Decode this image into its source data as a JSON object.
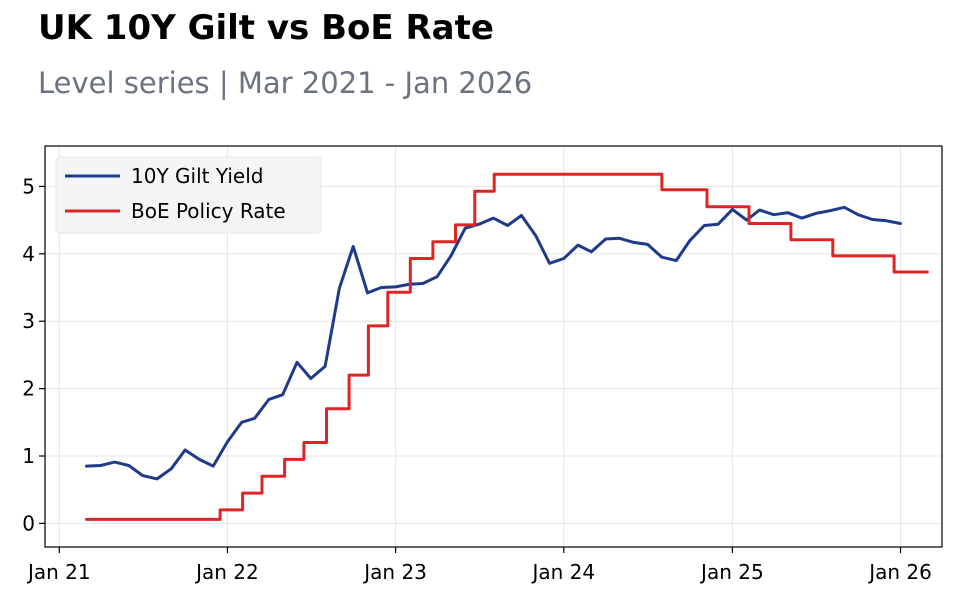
{
  "title": "UK 10Y Gilt vs BoE Rate",
  "subtitle": "Level series | Mar 2021 - Jan 2026",
  "chart_data": {
    "type": "line",
    "title": "UK 10Y Gilt vs BoE Rate",
    "subtitle": "Level series | Mar 2021 - Jan 2026",
    "xlabel": "",
    "ylabel": "",
    "x_ticks": [
      "Jan 21",
      "Jan 22",
      "Jan 23",
      "Jan 24",
      "Jan 25",
      "Jan 26"
    ],
    "y_ticks": [
      "0",
      "1",
      "2",
      "3",
      "4",
      "5"
    ],
    "xlim": [
      "2020-12-01",
      "2026-04-01"
    ],
    "ylim": [
      -0.35,
      5.6
    ],
    "grid": true,
    "legend": "upper-left",
    "colors": {
      "gilt": "#1f3a8a",
      "boe": "#dc2626"
    },
    "series": [
      {
        "name": "10Y Gilt Yield",
        "style": "line",
        "color": "#1f3a8a",
        "points": [
          [
            "2021-03-01",
            0.85
          ],
          [
            "2021-04-01",
            0.86
          ],
          [
            "2021-05-01",
            0.91
          ],
          [
            "2021-06-01",
            0.86
          ],
          [
            "2021-07-01",
            0.71
          ],
          [
            "2021-08-01",
            0.66
          ],
          [
            "2021-09-01",
            0.81
          ],
          [
            "2021-10-01",
            1.09
          ],
          [
            "2021-11-01",
            0.95
          ],
          [
            "2021-12-01",
            0.85
          ],
          [
            "2022-01-01",
            1.21
          ],
          [
            "2022-02-01",
            1.5
          ],
          [
            "2022-03-01",
            1.56
          ],
          [
            "2022-04-01",
            1.84
          ],
          [
            "2022-05-01",
            1.91
          ],
          [
            "2022-06-01",
            2.39
          ],
          [
            "2022-07-01",
            2.15
          ],
          [
            "2022-08-01",
            2.33
          ],
          [
            "2022-09-01",
            3.49
          ],
          [
            "2022-10-01",
            4.11
          ],
          [
            "2022-11-01",
            3.42
          ],
          [
            "2022-12-01",
            3.5
          ],
          [
            "2023-01-01",
            3.51
          ],
          [
            "2023-02-01",
            3.55
          ],
          [
            "2023-03-01",
            3.56
          ],
          [
            "2023-04-01",
            3.66
          ],
          [
            "2023-05-01",
            3.97
          ],
          [
            "2023-06-01",
            4.38
          ],
          [
            "2023-07-01",
            4.44
          ],
          [
            "2023-08-01",
            4.53
          ],
          [
            "2023-09-01",
            4.42
          ],
          [
            "2023-10-01",
            4.57
          ],
          [
            "2023-11-01",
            4.27
          ],
          [
            "2023-12-01",
            3.86
          ],
          [
            "2024-01-01",
            3.93
          ],
          [
            "2024-02-01",
            4.13
          ],
          [
            "2024-03-01",
            4.03
          ],
          [
            "2024-04-01",
            4.22
          ],
          [
            "2024-05-01",
            4.23
          ],
          [
            "2024-06-01",
            4.17
          ],
          [
            "2024-07-01",
            4.14
          ],
          [
            "2024-08-01",
            3.95
          ],
          [
            "2024-09-01",
            3.9
          ],
          [
            "2024-10-01",
            4.2
          ],
          [
            "2024-11-01",
            4.42
          ],
          [
            "2024-12-01",
            4.44
          ],
          [
            "2025-01-01",
            4.66
          ],
          [
            "2025-02-01",
            4.5
          ],
          [
            "2025-03-01",
            4.65
          ],
          [
            "2025-04-01",
            4.58
          ],
          [
            "2025-05-01",
            4.61
          ],
          [
            "2025-06-01",
            4.53
          ],
          [
            "2025-07-01",
            4.6
          ],
          [
            "2025-08-01",
            4.64
          ],
          [
            "2025-09-01",
            4.69
          ],
          [
            "2025-10-01",
            4.58
          ],
          [
            "2025-11-01",
            4.51
          ],
          [
            "2025-12-01",
            4.49
          ],
          [
            "2026-01-01",
            4.45
          ]
        ]
      },
      {
        "name": "BoE Policy Rate",
        "style": "step",
        "color": "#dc2626",
        "points": [
          [
            "2021-03-01",
            0.06
          ],
          [
            "2021-12-16",
            0.2
          ],
          [
            "2022-02-03",
            0.45
          ],
          [
            "2022-03-17",
            0.7
          ],
          [
            "2022-05-05",
            0.95
          ],
          [
            "2022-06-16",
            1.2
          ],
          [
            "2022-08-04",
            1.7
          ],
          [
            "2022-09-22",
            2.2
          ],
          [
            "2022-11-03",
            2.93
          ],
          [
            "2022-12-15",
            3.43
          ],
          [
            "2023-02-02",
            3.93
          ],
          [
            "2023-03-23",
            4.18
          ],
          [
            "2023-05-11",
            4.43
          ],
          [
            "2023-06-22",
            4.93
          ],
          [
            "2023-08-03",
            5.18
          ],
          [
            "2024-08-01",
            4.95
          ],
          [
            "2024-11-07",
            4.7
          ],
          [
            "2025-02-06",
            4.45
          ],
          [
            "2025-05-08",
            4.21
          ],
          [
            "2025-08-07",
            3.97
          ],
          [
            "2025-12-18",
            3.73
          ],
          [
            "2026-02-28",
            3.73
          ]
        ]
      }
    ]
  }
}
